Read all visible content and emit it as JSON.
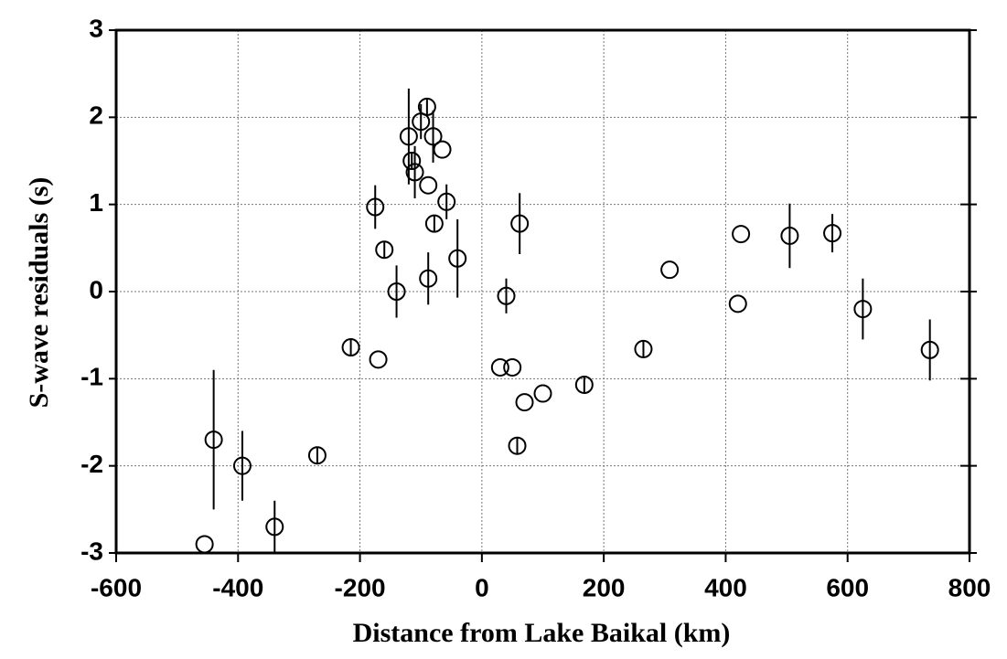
{
  "chart_data": {
    "type": "scatter",
    "xlabel": "Distance from Lake Baikal (km)",
    "ylabel": "S-wave residuals (s)",
    "x": [
      -455,
      -440,
      -393,
      -340,
      -270,
      -215,
      -175,
      -170,
      -160,
      -140,
      -120,
      -115,
      -110,
      -100,
      -90,
      -88,
      -88,
      -80,
      -78,
      -65,
      -58,
      -40,
      30,
      40,
      50,
      58,
      62,
      70,
      100,
      168,
      265,
      308,
      420,
      425,
      505,
      575,
      625,
      735
    ],
    "values": [
      -2.9,
      -1.7,
      -2.0,
      -2.7,
      -1.88,
      -0.64,
      0.97,
      -0.78,
      0.48,
      0.0,
      1.78,
      1.5,
      1.37,
      1.95,
      2.12,
      1.22,
      0.15,
      1.78,
      0.78,
      1.63,
      1.03,
      0.38,
      -0.87,
      -0.05,
      -0.87,
      -1.77,
      0.78,
      -1.27,
      -1.17,
      -1.07,
      -0.66,
      0.25,
      -0.14,
      0.66,
      0.64,
      0.67,
      -0.2,
      -0.67
    ],
    "errors": [
      0,
      0.8,
      0.4,
      0.3,
      0.1,
      0.1,
      0.25,
      0,
      0.1,
      0.3,
      0.55,
      0.1,
      0.3,
      0.2,
      0.1,
      0,
      0.3,
      0.3,
      0.1,
      0,
      0.2,
      0.45,
      0,
      0.2,
      0,
      0.1,
      0.35,
      0,
      0,
      0.1,
      0.1,
      0,
      0,
      0,
      0.37,
      0.22,
      0.35,
      0.35
    ],
    "color": "#000000",
    "xlim": [
      -600,
      800
    ],
    "xticks": [
      -600,
      -400,
      -200,
      0,
      200,
      400,
      600,
      800
    ],
    "ylim": [
      -3,
      3
    ],
    "yticks": [
      -3,
      -2,
      -1,
      0,
      1,
      2,
      3
    ],
    "grid": true
  }
}
